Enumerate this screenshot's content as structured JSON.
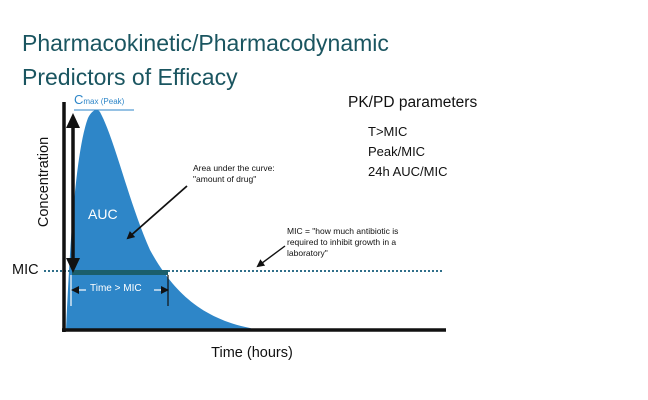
{
  "title_line1": "Pharmacokinetic/Pharmacodynamic",
  "title_line2": "Predictors of Efficacy",
  "pk_heading": "PK/PD parameters",
  "pk_items": [
    "T>MIC",
    "Peak/MIC",
    "24h AUC/MIC"
  ],
  "y_axis_label": "Concentration",
  "x_axis_label": "Time (hours)",
  "mic_label": "MIC",
  "cmax_main": "C",
  "cmax_sub": "max",
  "cmax_paren": " (Peak)",
  "auc_label": "AUC",
  "time_mic_label": "Time > MIC",
  "annotation_auc": [
    "Area under the curve:",
    "\"amount of drug\""
  ],
  "annotation_mic": [
    "MIC = \"how much antibiotic is",
    "required to inhibit growth in a",
    "laboratory\""
  ],
  "colors": {
    "title": "#1a5560",
    "curve_fill": "#2e86c8",
    "mic_line": "#2f6f8a",
    "mic_bar": "#1b5e6b",
    "text": "#111111"
  }
}
